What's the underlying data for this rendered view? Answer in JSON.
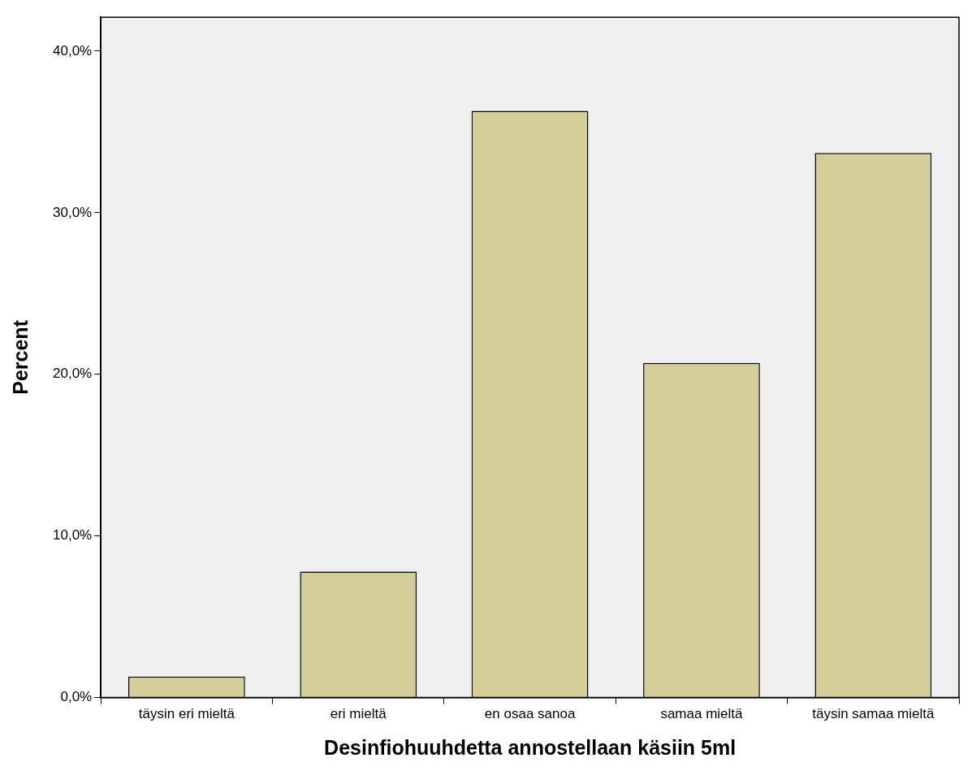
{
  "chart_data": {
    "type": "bar",
    "xlabel": "Desinfiohuuhdetta annostellaan käsiin 5ml",
    "ylabel": "Percent",
    "categories": [
      "täysin eri mieltä",
      "eri mieltä",
      "en osaa sanoa",
      "samaa mieltä",
      "täysin samaa mieltä"
    ],
    "values": [
      1.3,
      7.8,
      36.3,
      20.7,
      33.7
    ],
    "color": "#d3ce98",
    "ylim": [
      0,
      42.1
    ],
    "yticks": [
      {
        "value": 0,
        "label": "0,0%"
      },
      {
        "value": 10,
        "label": "10,0%"
      },
      {
        "value": 20,
        "label": "20,0%"
      },
      {
        "value": 30,
        "label": "30,0%"
      },
      {
        "value": 40,
        "label": "40,0%"
      }
    ],
    "grid": false,
    "legend": false
  }
}
